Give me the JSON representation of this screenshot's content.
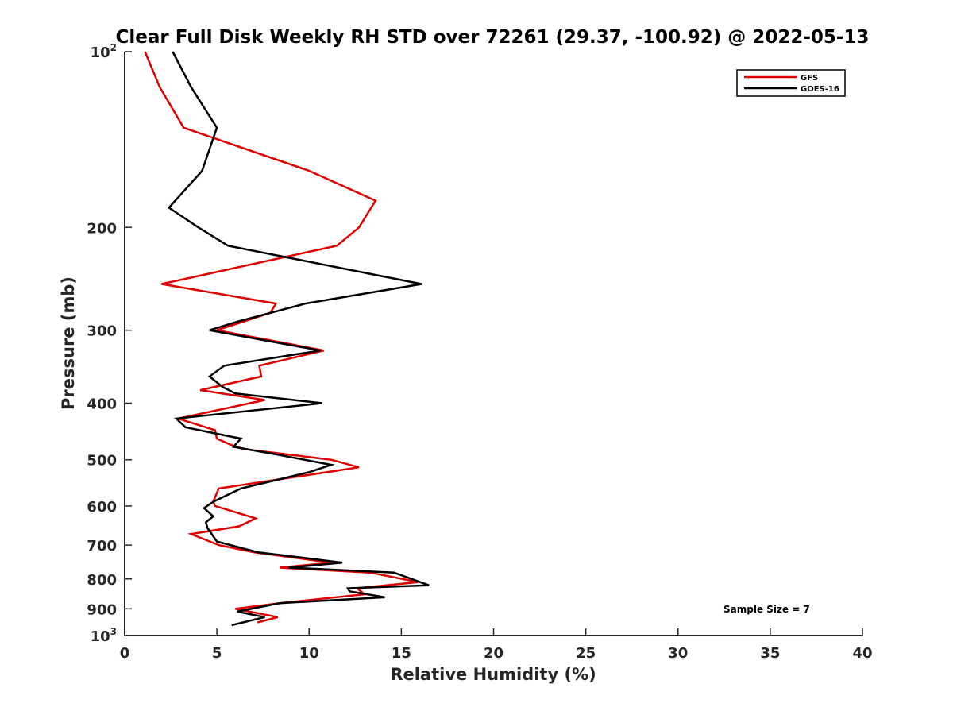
{
  "chart_data": {
    "type": "line",
    "title": "Clear Full Disk Weekly RH STD over 72261 (29.37, -100.92) @ 2022-05-13",
    "xlabel": "Relative Humidity (%)",
    "ylabel": "Pressure (mb)",
    "xlim": [
      0,
      40
    ],
    "ylim": [
      100,
      1000
    ],
    "yscale": "log",
    "y_reversed": true,
    "xticks": [
      "0",
      "5",
      "10",
      "15",
      "20",
      "25",
      "30",
      "35",
      "40"
    ],
    "yticks": [
      {
        "value": 100,
        "base": "10",
        "exp": "2"
      },
      {
        "value": 200,
        "label": "200"
      },
      {
        "value": 300,
        "label": "300"
      },
      {
        "value": 400,
        "label": "400"
      },
      {
        "value": 500,
        "label": "500"
      },
      {
        "value": 600,
        "label": "600"
      },
      {
        "value": 700,
        "label": "700"
      },
      {
        "value": 800,
        "label": "800"
      },
      {
        "value": 900,
        "label": "900"
      },
      {
        "value": 1000,
        "base": "10",
        "exp": "3"
      }
    ],
    "grid": false,
    "legend_position": "top-right",
    "annotation": "Sample Size = 7",
    "series": [
      {
        "name": "GFS",
        "color": "#e00000",
        "points": [
          [
            1.1,
            100
          ],
          [
            1.9,
            115
          ],
          [
            3.2,
            135
          ],
          [
            10.0,
            160
          ],
          [
            13.6,
            180
          ],
          [
            12.7,
            200
          ],
          [
            11.5,
            215
          ],
          [
            2.0,
            250
          ],
          [
            8.2,
            270
          ],
          [
            7.9,
            280
          ],
          [
            5.0,
            300
          ],
          [
            10.8,
            325
          ],
          [
            7.3,
            345
          ],
          [
            7.4,
            360
          ],
          [
            4.1,
            380
          ],
          [
            7.6,
            395
          ],
          [
            2.9,
            425
          ],
          [
            4.9,
            445
          ],
          [
            5.0,
            460
          ],
          [
            6.0,
            475
          ],
          [
            6.6,
            480
          ],
          [
            11.2,
            500
          ],
          [
            12.7,
            515
          ],
          [
            5.1,
            560
          ],
          [
            4.8,
            590
          ],
          [
            4.9,
            600
          ],
          [
            7.1,
            630
          ],
          [
            6.2,
            650
          ],
          [
            3.6,
            670
          ],
          [
            5.1,
            700
          ],
          [
            7.0,
            720
          ],
          [
            11.2,
            750
          ],
          [
            8.4,
            765
          ],
          [
            13.3,
            780
          ],
          [
            15.9,
            810
          ],
          [
            12.6,
            830
          ],
          [
            13.0,
            850
          ],
          [
            8.4,
            880
          ],
          [
            6.0,
            900
          ],
          [
            8.3,
            930
          ],
          [
            7.2,
            950
          ]
        ]
      },
      {
        "name": "GOES-16",
        "color": "#000000",
        "points": [
          [
            2.6,
            100
          ],
          [
            3.6,
            115
          ],
          [
            5.0,
            135
          ],
          [
            4.2,
            160
          ],
          [
            2.4,
            185
          ],
          [
            4.0,
            200
          ],
          [
            5.6,
            215
          ],
          [
            16.1,
            250
          ],
          [
            9.8,
            270
          ],
          [
            6.1,
            290
          ],
          [
            4.6,
            300
          ],
          [
            10.6,
            325
          ],
          [
            5.4,
            345
          ],
          [
            4.6,
            360
          ],
          [
            5.3,
            375
          ],
          [
            6.0,
            385
          ],
          [
            10.7,
            400
          ],
          [
            2.8,
            425
          ],
          [
            3.3,
            440
          ],
          [
            6.3,
            460
          ],
          [
            5.9,
            475
          ],
          [
            8.3,
            490
          ],
          [
            11.2,
            510
          ],
          [
            10.0,
            525
          ],
          [
            6.3,
            560
          ],
          [
            4.8,
            590
          ],
          [
            4.3,
            605
          ],
          [
            4.8,
            625
          ],
          [
            4.4,
            640
          ],
          [
            4.5,
            655
          ],
          [
            5.0,
            690
          ],
          [
            7.2,
            720
          ],
          [
            11.8,
            750
          ],
          [
            8.9,
            765
          ],
          [
            14.6,
            780
          ],
          [
            16.5,
            820
          ],
          [
            12.1,
            830
          ],
          [
            12.2,
            840
          ],
          [
            14.1,
            860
          ],
          [
            8.4,
            880
          ],
          [
            6.1,
            910
          ],
          [
            7.6,
            930
          ],
          [
            5.8,
            960
          ]
        ]
      }
    ]
  }
}
